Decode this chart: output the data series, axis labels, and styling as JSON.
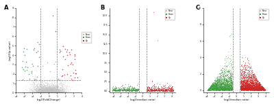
{
  "panel_A": {
    "label": "A",
    "xlabel": "log2(FoldChange)",
    "ylabel": "-log10(p-value)",
    "vlines": [
      -1.0,
      1.0
    ],
    "hline": 1.301,
    "n_gray": 3000,
    "n_red": 35,
    "n_green": 30,
    "x_range": [
      -4.0,
      4.0
    ],
    "y_range": [
      0.0,
      9.0
    ],
    "legend_labels": [
      "None",
      "Down",
      "Up"
    ],
    "legend_colors": [
      "#aaaaaa",
      "#4aa04a",
      "#cc3333"
    ]
  },
  "panel_B": {
    "label": "B",
    "xlabel": "log2(median ratio)",
    "ylabel": "",
    "vlines": [
      -0.5,
      0.5
    ],
    "n_gray": 30,
    "n_red": 400,
    "n_green": 350,
    "x_range": [
      -4.5,
      4.5
    ],
    "y_range": [
      -0.5,
      22.0
    ],
    "legend_labels": [
      "None",
      "Down",
      "Up"
    ],
    "legend_colors": [
      "#aaaaaa",
      "#4aa04a",
      "#cc3333"
    ]
  },
  "panel_C": {
    "label": "C",
    "xlabel": "log2(median ratio)",
    "ylabel": "",
    "vlines": [
      -0.5,
      0.5
    ],
    "n_gray": 50,
    "n_red": 2500,
    "n_green": 2000,
    "x_range": [
      -4.5,
      4.5
    ],
    "y_range": [
      -0.3,
      10.0
    ],
    "legend_labels": [
      "None",
      "Down",
      "Up"
    ],
    "legend_colors": [
      "#aaaaaa",
      "#4aa04a",
      "#cc3333"
    ]
  },
  "background_color": "#ffffff",
  "gray_color": "#c0c0c0",
  "green_color": "#3a9a3a",
  "red_color": "#cc2222"
}
